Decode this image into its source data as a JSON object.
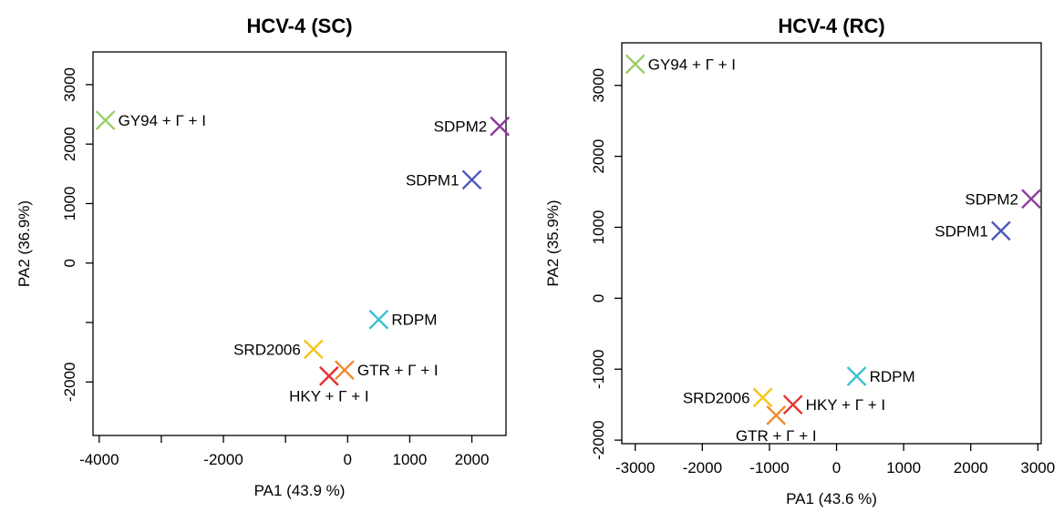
{
  "chart_data": [
    {
      "type": "scatter",
      "title": "HCV-4 (SC)",
      "xlabel": "PA1 (43.9 %)",
      "ylabel": "PA2 (36.9%)",
      "xlim": [
        -4100,
        2550
      ],
      "ylim": [
        -2900,
        3550
      ],
      "x_ticks": [
        -4000,
        -3000,
        -2000,
        -1000,
        0,
        1000,
        2000
      ],
      "x_tick_labels": [
        "-4000",
        "",
        "-2000",
        "",
        "0",
        "1000",
        "2000"
      ],
      "y_ticks": [
        -2000,
        -1000,
        0,
        1000,
        2000,
        3000
      ],
      "y_tick_labels": [
        "-2000",
        "",
        "0",
        "1000",
        "2000",
        "3000"
      ],
      "points": [
        {
          "label": "GY94 + Γ + I",
          "x": -3900,
          "y": 2400,
          "color": "#9ACD6A",
          "label_side": "right"
        },
        {
          "label": "SDPM2",
          "x": 2450,
          "y": 2300,
          "color": "#8B3A9B",
          "label_side": "left"
        },
        {
          "label": "SDPM1",
          "x": 2000,
          "y": 1400,
          "color": "#4A5AB8",
          "label_side": "left"
        },
        {
          "label": "RDPM",
          "x": 500,
          "y": -950,
          "color": "#3EC1D3",
          "label_side": "right"
        },
        {
          "label": "SRD2006",
          "x": -550,
          "y": -1450,
          "color": "#F5C518",
          "label_side": "left"
        },
        {
          "label": "GTR + Γ + I",
          "x": -50,
          "y": -1800,
          "color": "#F08A2E",
          "label_side": "right"
        },
        {
          "label": "HKY + Γ + I",
          "x": -300,
          "y": -1900,
          "color": "#E8302A",
          "label_side": "below"
        }
      ]
    },
    {
      "type": "scatter",
      "title": "HCV-4 (RC)",
      "xlabel": "PA1 (43.6 %)",
      "ylabel": "PA2 (35.9%)",
      "xlim": [
        -3200,
        3050
      ],
      "ylim": [
        -2050,
        3600
      ],
      "x_ticks": [
        -3000,
        -2000,
        -1000,
        0,
        1000,
        2000,
        3000
      ],
      "x_tick_labels": [
        "-3000",
        "-2000",
        "-1000",
        "0",
        "1000",
        "2000",
        "3000"
      ],
      "y_ticks": [
        -2000,
        -1000,
        0,
        1000,
        2000,
        3000
      ],
      "y_tick_labels": [
        "-2000",
        "-1000",
        "0",
        "1000",
        "2000",
        "3000"
      ],
      "points": [
        {
          "label": "GY94 + Γ + I",
          "x": -3000,
          "y": 3300,
          "color": "#9ACD6A",
          "label_side": "right"
        },
        {
          "label": "SDPM2",
          "x": 2900,
          "y": 1400,
          "color": "#8B3A9B",
          "label_side": "left"
        },
        {
          "label": "SDPM1",
          "x": 2450,
          "y": 950,
          "color": "#4A5AB8",
          "label_side": "left"
        },
        {
          "label": "RDPM",
          "x": 300,
          "y": -1100,
          "color": "#3EC1D3",
          "label_side": "right"
        },
        {
          "label": "SRD2006",
          "x": -1100,
          "y": -1400,
          "color": "#F5C518",
          "label_side": "left"
        },
        {
          "label": "HKY + Γ + I",
          "x": -650,
          "y": -1500,
          "color": "#E8302A",
          "label_side": "right"
        },
        {
          "label": "GTR + Γ + I",
          "x": -900,
          "y": -1650,
          "color": "#F08A2E",
          "label_side": "below"
        }
      ]
    }
  ]
}
